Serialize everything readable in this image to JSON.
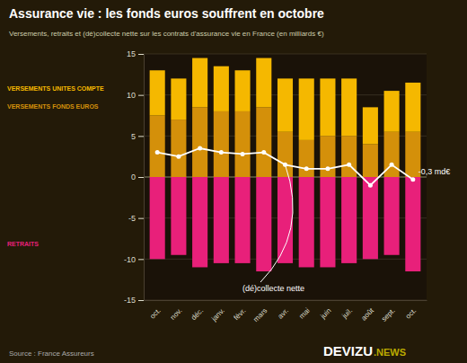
{
  "chart_data": {
    "type": "bar",
    "title": "Assurance vie : les fonds euros souffrent en octobre",
    "subtitle": "Versements, retraits et (dé)collecte nette sur les contrats d'assurance vie en France (en milliards €)",
    "source": "Source : France Assureurs",
    "categories": [
      "oct.",
      "nov.",
      "déc.",
      "janv.",
      "févr.",
      "mars",
      "avr.",
      "mai",
      "juin",
      "juil.",
      "août",
      "sept.",
      "oct."
    ],
    "series": [
      {
        "name": "VERSEMENTS FONDS EUROS",
        "type": "bar",
        "color": "#D4900A",
        "values": [
          7.5,
          7.0,
          8.5,
          8.0,
          8.0,
          8.5,
          5.5,
          4.5,
          5.0,
          5.0,
          4.0,
          5.5,
          5.5
        ]
      },
      {
        "name": "VERSEMENTS UNITES COMPTE",
        "type": "bar",
        "color": "#F5B800",
        "values": [
          5.5,
          5.0,
          6.0,
          5.5,
          5.0,
          6.0,
          6.5,
          7.5,
          7.0,
          7.0,
          4.5,
          5.0,
          6.0
        ]
      },
      {
        "name": "RETRAITS",
        "type": "bar",
        "color": "#E8207A",
        "values": [
          -10.0,
          -9.5,
          -11.0,
          -10.5,
          -10.5,
          -11.5,
          -10.5,
          -11.0,
          -11.0,
          -10.5,
          -10.0,
          -9.5,
          -11.5
        ]
      },
      {
        "type": "line",
        "color": "#FFFFFF",
        "marker": "circle",
        "data_labels": true,
        "values": [
          3.0,
          2.5,
          3.5,
          3.0,
          2.8,
          3.0,
          1.5,
          1.0,
          1.0,
          1.5,
          -1.0,
          1.5,
          -0.3
        ],
        "value_labels": [
          null,
          null,
          null,
          null,
          null,
          null,
          null,
          null,
          null,
          null,
          null,
          null,
          "-0,3 md€"
        ]
      }
    ],
    "stacked": true,
    "legend": "left",
    "grid": true,
    "ylim": [
      -15,
      15
    ],
    "yticks": [
      -15,
      -10,
      -5,
      0,
      5,
      10,
      15
    ],
    "annotations": [
      {
        "text": "(dé)collecte nette",
        "category": "avr."
      },
      {
        "text": "DEVIZU"
      },
      {
        "text": ".NEWS",
        "color": "#BBAA00"
      }
    ]
  }
}
